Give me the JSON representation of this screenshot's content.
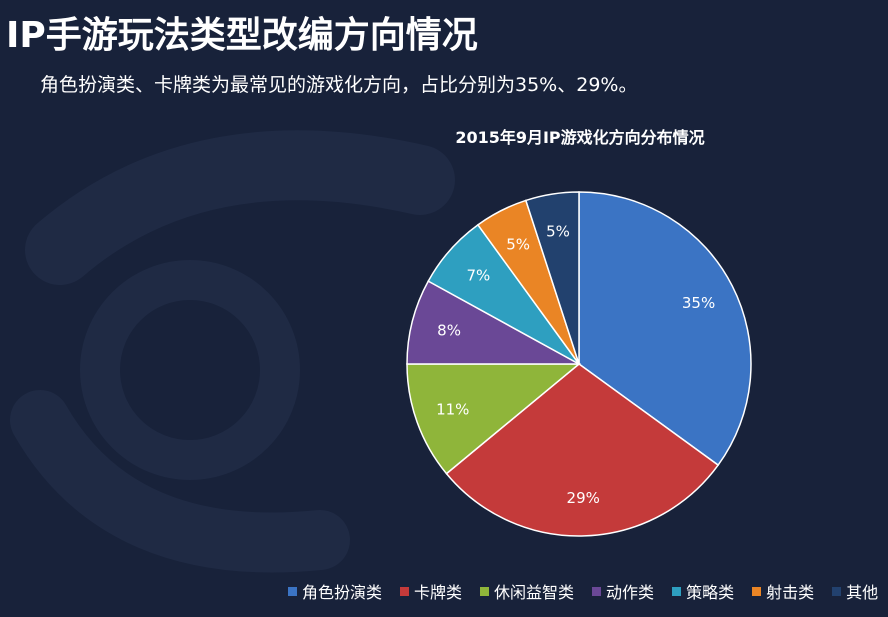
{
  "page": {
    "title": "IP手游玩法类型改编方向情况",
    "subtitle": "角色扮演类、卡牌类为最常见的游戏化方向，占比分别为35%、29%。"
  },
  "chart_data": {
    "type": "pie",
    "title": "2015年9月IP游戏化方向分布情况",
    "categories": [
      "角色扮演类",
      "卡牌类",
      "休闲益智类",
      "动作类",
      "策略类",
      "射击类",
      "其他"
    ],
    "values": [
      35,
      29,
      11,
      8,
      7,
      5,
      5
    ],
    "labels": [
      "35%",
      "29%",
      "11%",
      "8%",
      "7%",
      "5%",
      "5%"
    ],
    "colors": [
      "#3b74c4",
      "#c43a3a",
      "#8fb53a",
      "#6a4896",
      "#2e9fc0",
      "#ea8525",
      "#22416e"
    ],
    "legend_position": "bottom"
  }
}
